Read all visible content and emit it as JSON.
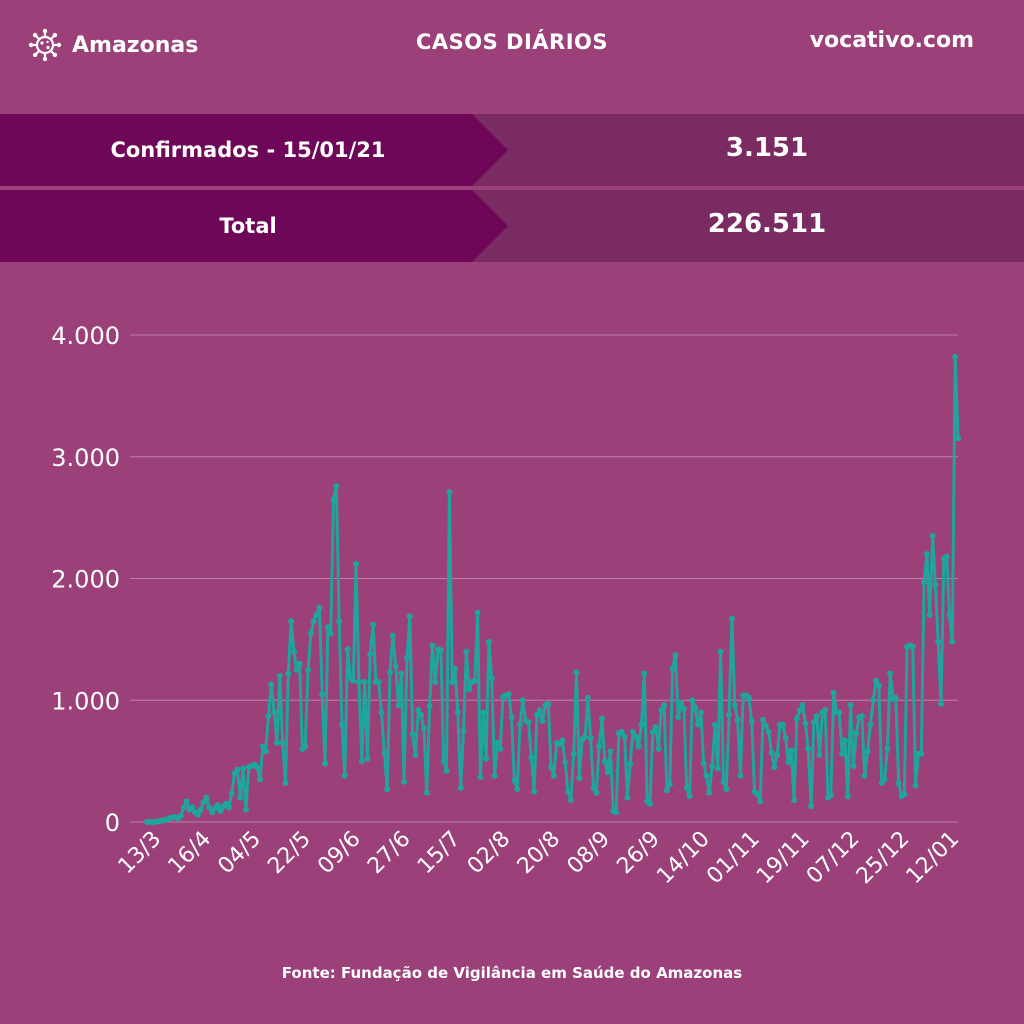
{
  "header": {
    "brand": "Amazonas",
    "brand_icon": "virus-icon",
    "title": "CASOS DIÁRIOS",
    "site": "vocativo.com"
  },
  "stats": {
    "confirmed_label": "Confirmados - 15/01/21",
    "confirmed_value": "3.151",
    "total_label": "Total",
    "total_value": "226.511"
  },
  "footer": {
    "source": "Fonte: Fundação de Vigilância em Saúde do Amazonas"
  },
  "colors": {
    "background": "#9b4079",
    "banner_dark": "#6e0757",
    "banner_light": "#7a2b62",
    "line": "#1fa59b"
  },
  "chart_data": {
    "type": "line",
    "title": "",
    "xlabel": "",
    "ylabel": "",
    "ylim": [
      0,
      4000
    ],
    "yticks": [
      0,
      1000,
      2000,
      3000,
      4000
    ],
    "ytick_labels": [
      "0",
      "1.000",
      "2.000",
      "3.000",
      "4.000"
    ],
    "xticks": [
      "13/3",
      "16/4",
      "04/5",
      "22/5",
      "09/6",
      "27/6",
      "15/7",
      "02/8",
      "20/8",
      "08/9",
      "26/9",
      "14/10",
      "01/11",
      "19/11",
      "07/12",
      "25/12",
      "12/01"
    ],
    "grid": true,
    "legend": "none",
    "series": [
      {
        "values": [
          0,
          0,
          0,
          0,
          5,
          10,
          15,
          20,
          30,
          40,
          40,
          30,
          50,
          120,
          170,
          100,
          120,
          80,
          60,
          100,
          160,
          200,
          120,
          80,
          110,
          140,
          90,
          130,
          150,
          120,
          240,
          400,
          430,
          200,
          440,
          100,
          450,
          460,
          470,
          450,
          350,
          620,
          580,
          870,
          1130,
          900,
          650,
          1200,
          650,
          320,
          1220,
          1650,
          1400,
          1250,
          1300,
          600,
          620,
          1250,
          1550,
          1650,
          1700,
          1760,
          1050,
          480,
          1600,
          1550,
          2650,
          2760,
          1650,
          800,
          380,
          1420,
          1180,
          1160,
          2120,
          1150,
          500,
          1150,
          520,
          1380,
          1620,
          1150,
          1150,
          900,
          570,
          270,
          1230,
          1530,
          1280,
          960,
          1220,
          330,
          1350,
          1690,
          720,
          550,
          920,
          880,
          770,
          240,
          950,
          1450,
          1150,
          1420,
          1410,
          500,
          420,
          2710,
          1150,
          1260,
          900,
          280,
          750,
          1400,
          1090,
          1150,
          1160,
          1720,
          370,
          900,
          520,
          1480,
          1180,
          380,
          650,
          600,
          1030,
          1040,
          1050,
          860,
          340,
          270,
          800,
          1000,
          830,
          820,
          530,
          250,
          880,
          920,
          830,
          960,
          970,
          450,
          380,
          650,
          640,
          670,
          490,
          250,
          180,
          560,
          1230,
          360,
          680,
          700,
          1020,
          690,
          280,
          240,
          620,
          850,
          500,
          410,
          580,
          90,
          80,
          730,
          740,
          700,
          200,
          480,
          740,
          700,
          620,
          800,
          1220,
          170,
          150,
          740,
          780,
          600,
          920,
          960,
          260,
          310,
          1260,
          1370,
          860,
          980,
          930,
          280,
          210,
          1000,
          940,
          800,
          900,
          480,
          380,
          240,
          460,
          800,
          440,
          1400,
          330,
          270,
          880,
          1670,
          960,
          840,
          380,
          1040,
          1040,
          1020,
          830,
          250,
          230,
          170,
          840,
          790,
          740,
          570,
          450,
          550,
          800,
          800,
          690,
          490,
          590,
          180,
          850,
          920,
          960,
          810,
          600,
          130,
          820,
          870,
          550,
          900,
          920,
          200,
          220,
          1060,
          900,
          900,
          560,
          670,
          210,
          960,
          460,
          730,
          860,
          870,
          380,
          580,
          800,
          1000,
          1160,
          1120,
          320,
          350,
          600,
          1220,
          1010,
          1020,
          320,
          210,
          230,
          1440,
          1450,
          1440,
          300,
          560,
          560,
          1970,
          2200,
          1700,
          2350,
          1950,
          1480,
          970,
          2160,
          2180,
          1700,
          1480,
          3820,
          3151
        ]
      }
    ]
  }
}
